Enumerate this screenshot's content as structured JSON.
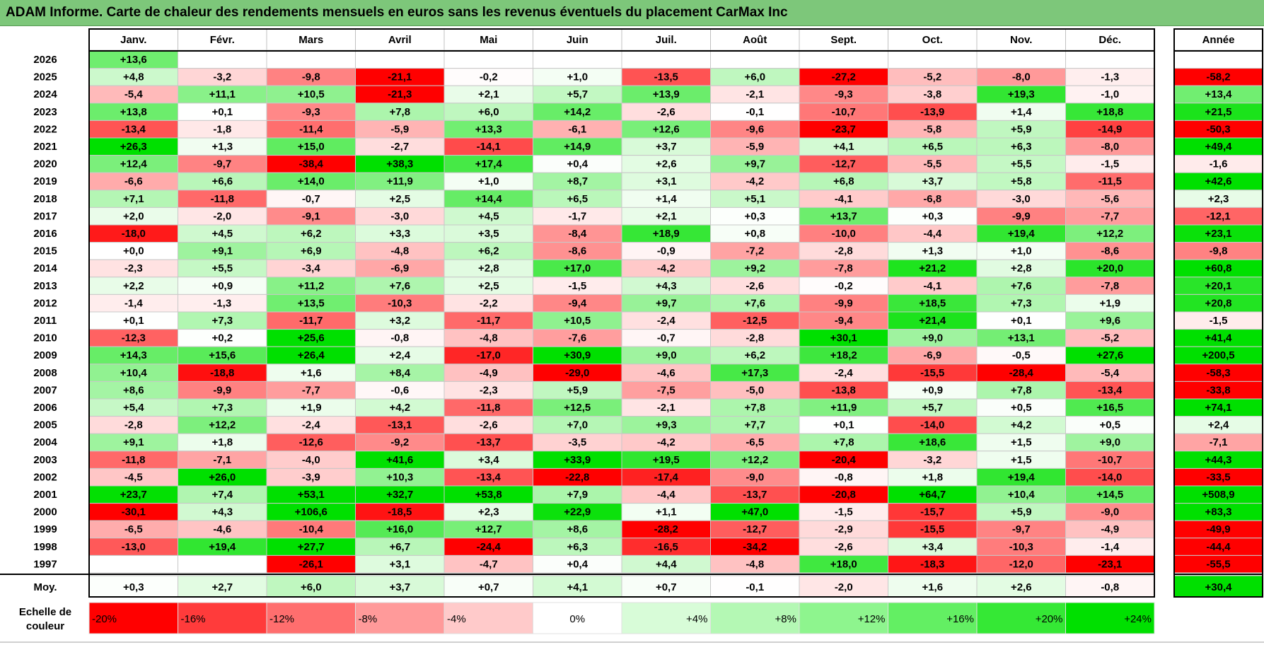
{
  "title": "ADAM Informe. Carte de chaleur des rendements mensuels en euros sans les revenus éventuels du placement CarMax Inc",
  "chart_data": {
    "type": "heatmap",
    "months": [
      "Janv.",
      "Févr.",
      "Mars",
      "Avril",
      "Mai",
      "Juin",
      "Juil.",
      "Août",
      "Sept.",
      "Oct.",
      "Nov.",
      "Déc."
    ],
    "year_header": "Année",
    "avg_label": "Moy.",
    "scale_label": "Echelle de couleur",
    "rows": [
      {
        "year": "2026",
        "months": [
          "+13,6",
          "",
          "",
          "",
          "",
          "",
          "",
          "",
          "",
          "",
          "",
          ""
        ],
        "annual": ""
      },
      {
        "year": "2025",
        "months": [
          "+4,8",
          "-3,2",
          "-9,8",
          "-21,1",
          "-0,2",
          "+1,0",
          "-13,5",
          "+6,0",
          "-27,2",
          "-5,2",
          "-8,0",
          "-1,3"
        ],
        "annual": "-58,2"
      },
      {
        "year": "2024",
        "months": [
          "-5,4",
          "+11,1",
          "+10,5",
          "-21,3",
          "+2,1",
          "+5,7",
          "+13,9",
          "-2,1",
          "-9,3",
          "-3,8",
          "+19,3",
          "-1,0"
        ],
        "annual": "+13,4"
      },
      {
        "year": "2023",
        "months": [
          "+13,8",
          "+0,1",
          "-9,3",
          "+7,8",
          "+6,0",
          "+14,2",
          "-2,6",
          "-0,1",
          "-10,7",
          "-13,9",
          "+1,4",
          "+18,8"
        ],
        "annual": "+21,5"
      },
      {
        "year": "2022",
        "months": [
          "-13,4",
          "-1,8",
          "-11,4",
          "-5,9",
          "+13,3",
          "-6,1",
          "+12,6",
          "-9,6",
          "-23,7",
          "-5,8",
          "+5,9",
          "-14,9"
        ],
        "annual": "-50,3"
      },
      {
        "year": "2021",
        "months": [
          "+26,3",
          "+1,3",
          "+15,0",
          "-2,7",
          "-14,1",
          "+14,9",
          "+3,7",
          "-5,9",
          "+4,1",
          "+6,5",
          "+6,3",
          "-8,0"
        ],
        "annual": "+49,4"
      },
      {
        "year": "2020",
        "months": [
          "+12,4",
          "-9,7",
          "-38,4",
          "+38,3",
          "+17,4",
          "+0,4",
          "+2,6",
          "+9,7",
          "-12,7",
          "-5,5",
          "+5,5",
          "-1,5"
        ],
        "annual": "-1,6"
      },
      {
        "year": "2019",
        "months": [
          "-6,6",
          "+6,6",
          "+14,0",
          "+11,9",
          "+1,0",
          "+8,7",
          "+3,1",
          "-4,2",
          "+6,8",
          "+3,7",
          "+5,8",
          "-11,5"
        ],
        "annual": "+42,6"
      },
      {
        "year": "2018",
        "months": [
          "+7,1",
          "-11,8",
          "-0,7",
          "+2,5",
          "+14,4",
          "+6,5",
          "+1,4",
          "+5,1",
          "-4,1",
          "-6,8",
          "-3,0",
          "-5,6"
        ],
        "annual": "+2,3"
      },
      {
        "year": "2017",
        "months": [
          "+2,0",
          "-2,0",
          "-9,1",
          "-3,0",
          "+4,5",
          "-1,7",
          "+2,1",
          "+0,3",
          "+13,7",
          "+0,3",
          "-9,9",
          "-7,7"
        ],
        "annual": "-12,1"
      },
      {
        "year": "2016",
        "months": [
          "-18,0",
          "+4,5",
          "+6,2",
          "+3,3",
          "+3,5",
          "-8,4",
          "+18,9",
          "+0,8",
          "-10,0",
          "-4,4",
          "+19,4",
          "+12,2"
        ],
        "annual": "+23,1"
      },
      {
        "year": "2015",
        "months": [
          "+0,0",
          "+9,1",
          "+6,9",
          "-4,8",
          "+6,2",
          "-8,6",
          "-0,9",
          "-7,2",
          "-2,8",
          "+1,3",
          "+1,0",
          "-8,6"
        ],
        "annual": "-9,8"
      },
      {
        "year": "2014",
        "months": [
          "-2,3",
          "+5,5",
          "-3,4",
          "-6,9",
          "+2,8",
          "+17,0",
          "-4,2",
          "+9,2",
          "-7,8",
          "+21,2",
          "+2,8",
          "+20,0"
        ],
        "annual": "+60,8"
      },
      {
        "year": "2013",
        "months": [
          "+2,2",
          "+0,9",
          "+11,2",
          "+7,6",
          "+2,5",
          "-1,5",
          "+4,3",
          "-2,6",
          "-0,2",
          "-4,1",
          "+7,6",
          "-7,8"
        ],
        "annual": "+20,1"
      },
      {
        "year": "2012",
        "months": [
          "-1,4",
          "-1,3",
          "+13,5",
          "-10,3",
          "-2,2",
          "-9,4",
          "+9,7",
          "+7,6",
          "-9,9",
          "+18,5",
          "+7,3",
          "+1,9"
        ],
        "annual": "+20,8"
      },
      {
        "year": "2011",
        "months": [
          "+0,1",
          "+7,3",
          "-11,7",
          "+3,2",
          "-11,7",
          "+10,5",
          "-2,4",
          "-12,5",
          "-9,4",
          "+21,4",
          "+0,1",
          "+9,6"
        ],
        "annual": "-1,5"
      },
      {
        "year": "2010",
        "months": [
          "-12,3",
          "+0,2",
          "+25,6",
          "-0,8",
          "-4,8",
          "-7,6",
          "-0,7",
          "-2,8",
          "+30,1",
          "+9,0",
          "+13,1",
          "-5,2"
        ],
        "annual": "+41,4"
      },
      {
        "year": "2009",
        "months": [
          "+14,3",
          "+15,6",
          "+26,4",
          "+2,4",
          "-17,0",
          "+30,9",
          "+9,0",
          "+6,2",
          "+18,2",
          "-6,9",
          "-0,5",
          "+27,6"
        ],
        "annual": "+200,5"
      },
      {
        "year": "2008",
        "months": [
          "+10,4",
          "-18,8",
          "+1,6",
          "+8,4",
          "-4,9",
          "-29,0",
          "-4,6",
          "+17,3",
          "-2,4",
          "-15,5",
          "-28,4",
          "-5,4"
        ],
        "annual": "-58,3"
      },
      {
        "year": "2007",
        "months": [
          "+8,6",
          "-9,9",
          "-7,7",
          "-0,6",
          "-2,3",
          "+5,9",
          "-7,5",
          "-5,0",
          "-13,8",
          "+0,9",
          "+7,8",
          "-13,4"
        ],
        "annual": "-33,8"
      },
      {
        "year": "2006",
        "months": [
          "+5,4",
          "+7,3",
          "+1,9",
          "+4,2",
          "-11,8",
          "+12,5",
          "-2,1",
          "+7,8",
          "+11,9",
          "+5,7",
          "+0,5",
          "+16,5"
        ],
        "annual": "+74,1"
      },
      {
        "year": "2005",
        "months": [
          "-2,8",
          "+12,2",
          "-2,4",
          "-13,1",
          "-2,6",
          "+7,0",
          "+9,3",
          "+7,7",
          "+0,1",
          "-14,0",
          "+4,2",
          "+0,5"
        ],
        "annual": "+2,4"
      },
      {
        "year": "2004",
        "months": [
          "+9,1",
          "+1,8",
          "-12,6",
          "-9,2",
          "-13,7",
          "-3,5",
          "-4,2",
          "-6,5",
          "+7,8",
          "+18,6",
          "+1,5",
          "+9,0"
        ],
        "annual": "-7,1"
      },
      {
        "year": "2003",
        "months": [
          "-11,8",
          "-7,1",
          "-4,0",
          "+41,6",
          "+3,4",
          "+33,9",
          "+19,5",
          "+12,2",
          "-20,4",
          "-3,2",
          "+1,5",
          "-10,7"
        ],
        "annual": "+44,3"
      },
      {
        "year": "2002",
        "months": [
          "-4,5",
          "+26,0",
          "-3,9",
          "+10,3",
          "-13,4",
          "-22,8",
          "-17,4",
          "-9,0",
          "-0,8",
          "+1,8",
          "+19,4",
          "-14,0"
        ],
        "annual": "-33,5"
      },
      {
        "year": "2001",
        "months": [
          "+23,7",
          "+7,4",
          "+53,1",
          "+32,7",
          "+53,8",
          "+7,9",
          "-4,4",
          "-13,7",
          "-20,8",
          "+64,7",
          "+10,4",
          "+14,5"
        ],
        "annual": "+508,9"
      },
      {
        "year": "2000",
        "months": [
          "-30,1",
          "+4,3",
          "+106,6",
          "-18,5",
          "+2,3",
          "+22,9",
          "+1,1",
          "+47,0",
          "-1,5",
          "-15,7",
          "+5,9",
          "-9,0"
        ],
        "annual": "+83,3"
      },
      {
        "year": "1999",
        "months": [
          "-6,5",
          "-4,6",
          "-10,4",
          "+16,0",
          "+12,7",
          "+8,6",
          "-28,2",
          "-12,7",
          "-2,9",
          "-15,5",
          "-9,7",
          "-4,9"
        ],
        "annual": "-49,9"
      },
      {
        "year": "1998",
        "months": [
          "-13,0",
          "+19,4",
          "+27,7",
          "+6,7",
          "-24,4",
          "+6,3",
          "-16,5",
          "-34,2",
          "-2,6",
          "+3,4",
          "-10,3",
          "-1,4"
        ],
        "annual": "-44,4"
      },
      {
        "year": "1997",
        "months": [
          "",
          "",
          "-26,1",
          "+3,1",
          "-4,7",
          "+0,4",
          "+4,4",
          "-4,8",
          "+18,0",
          "-18,3",
          "-12,0",
          "-23,1"
        ],
        "annual": "-55,5"
      }
    ],
    "averages": {
      "months": [
        "+0,3",
        "+2,7",
        "+6,0",
        "+3,7",
        "+0,7",
        "+4,1",
        "+0,7",
        "-0,1",
        "-2,0",
        "+1,6",
        "+2,6",
        "-0,8"
      ],
      "annual": "+30,4"
    },
    "scale": {
      "labels": [
        "-20%",
        "-16%",
        "-12%",
        "-8%",
        "-4%",
        "0%",
        "+4%",
        "+8%",
        "+12%",
        "+16%",
        "+20%",
        "+24%"
      ],
      "colors": [
        "#ff0000",
        "#ff3b3b",
        "#ff6e6e",
        "#ff9a9a",
        "#ffcaca",
        "#ffffff",
        "#d8fcd8",
        "#b4f8b4",
        "#8ef58e",
        "#63ef63",
        "#35e835",
        "#00e000"
      ]
    }
  }
}
